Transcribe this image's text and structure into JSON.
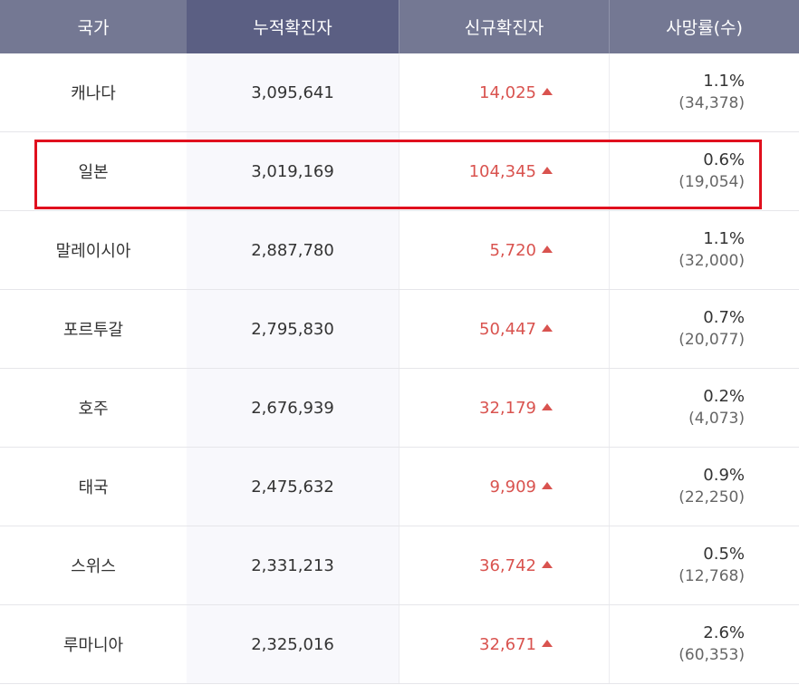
{
  "headers": {
    "country": "국가",
    "total": "누적확진자",
    "new": "신규확진자",
    "death": "사망률(수)"
  },
  "colors": {
    "header_bg": "#747893",
    "header_active_bg": "#5b5f83",
    "increase": "#d9534f",
    "highlight_border": "#e0101e"
  },
  "icons": {
    "increase": "up-triangle-icon"
  },
  "highlighted_row": "일본",
  "rows": [
    {
      "country": "캐나다",
      "total": "3,095,641",
      "new": "14,025",
      "rate": "1.1%",
      "deaths": "(34,378)"
    },
    {
      "country": "일본",
      "total": "3,019,169",
      "new": "104,345",
      "rate": "0.6%",
      "deaths": "(19,054)"
    },
    {
      "country": "말레이시아",
      "total": "2,887,780",
      "new": "5,720",
      "rate": "1.1%",
      "deaths": "(32,000)"
    },
    {
      "country": "포르투갈",
      "total": "2,795,830",
      "new": "50,447",
      "rate": "0.7%",
      "deaths": "(20,077)"
    },
    {
      "country": "호주",
      "total": "2,676,939",
      "new": "32,179",
      "rate": "0.2%",
      "deaths": "(4,073)"
    },
    {
      "country": "태국",
      "total": "2,475,632",
      "new": "9,909",
      "rate": "0.9%",
      "deaths": "(22,250)"
    },
    {
      "country": "스위스",
      "total": "2,331,213",
      "new": "36,742",
      "rate": "0.5%",
      "deaths": "(12,768)"
    },
    {
      "country": "루마니아",
      "total": "2,325,016",
      "new": "32,671",
      "rate": "2.6%",
      "deaths": "(60,353)"
    }
  ]
}
